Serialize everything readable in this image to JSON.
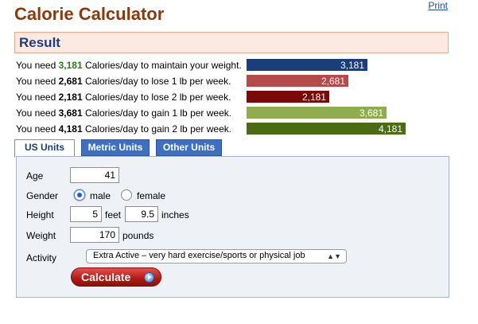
{
  "page": {
    "title": "Calorie Calculator",
    "print_label": "Print"
  },
  "result": {
    "heading": "Result",
    "rows": [
      {
        "prefix": "You need ",
        "value": "3,181",
        "suffix": " Calories/day to maintain your weight.",
        "bar_label": "3,181",
        "calories": 3181,
        "color": "#1c3e78"
      },
      {
        "prefix": "You need ",
        "value": "2,681",
        "suffix": " Calories/day to lose 1 lb per week.",
        "bar_label": "2,681",
        "calories": 2681,
        "color": "#b54a4a"
      },
      {
        "prefix": "You need ",
        "value": "2,181",
        "suffix": " Calories/day to lose 2 lb per week.",
        "bar_label": "2,181",
        "calories": 2181,
        "color": "#7a0a0a"
      },
      {
        "prefix": "You need ",
        "value": "3,681",
        "suffix": " Calories/day to gain 1 lb per week.",
        "bar_label": "3,681",
        "calories": 3681,
        "color": "#8fac4e"
      },
      {
        "prefix": "You need ",
        "value": "4,181",
        "suffix": " Calories/day to gain 2 lb per week.",
        "bar_label": "4,181",
        "calories": 4181,
        "color": "#4b6a14"
      }
    ]
  },
  "tabs": [
    {
      "label": "US Units",
      "active": true
    },
    {
      "label": "Metric Units",
      "active": false
    },
    {
      "label": "Other Units",
      "active": false
    }
  ],
  "form": {
    "age_label": "Age",
    "age_value": "41",
    "gender_label": "Gender",
    "gender_male": "male",
    "gender_female": "female",
    "height_label": "Height",
    "height_feet_value": "5",
    "height_feet_unit": "feet",
    "height_inches_value": "9.5",
    "height_inches_unit": "inches",
    "weight_label": "Weight",
    "weight_value": "170",
    "weight_unit": "pounds",
    "activity_label": "Activity",
    "activity_selected": "Extra Active – very hard exercise/sports or physical job",
    "calculate_label": "Calculate"
  }
}
